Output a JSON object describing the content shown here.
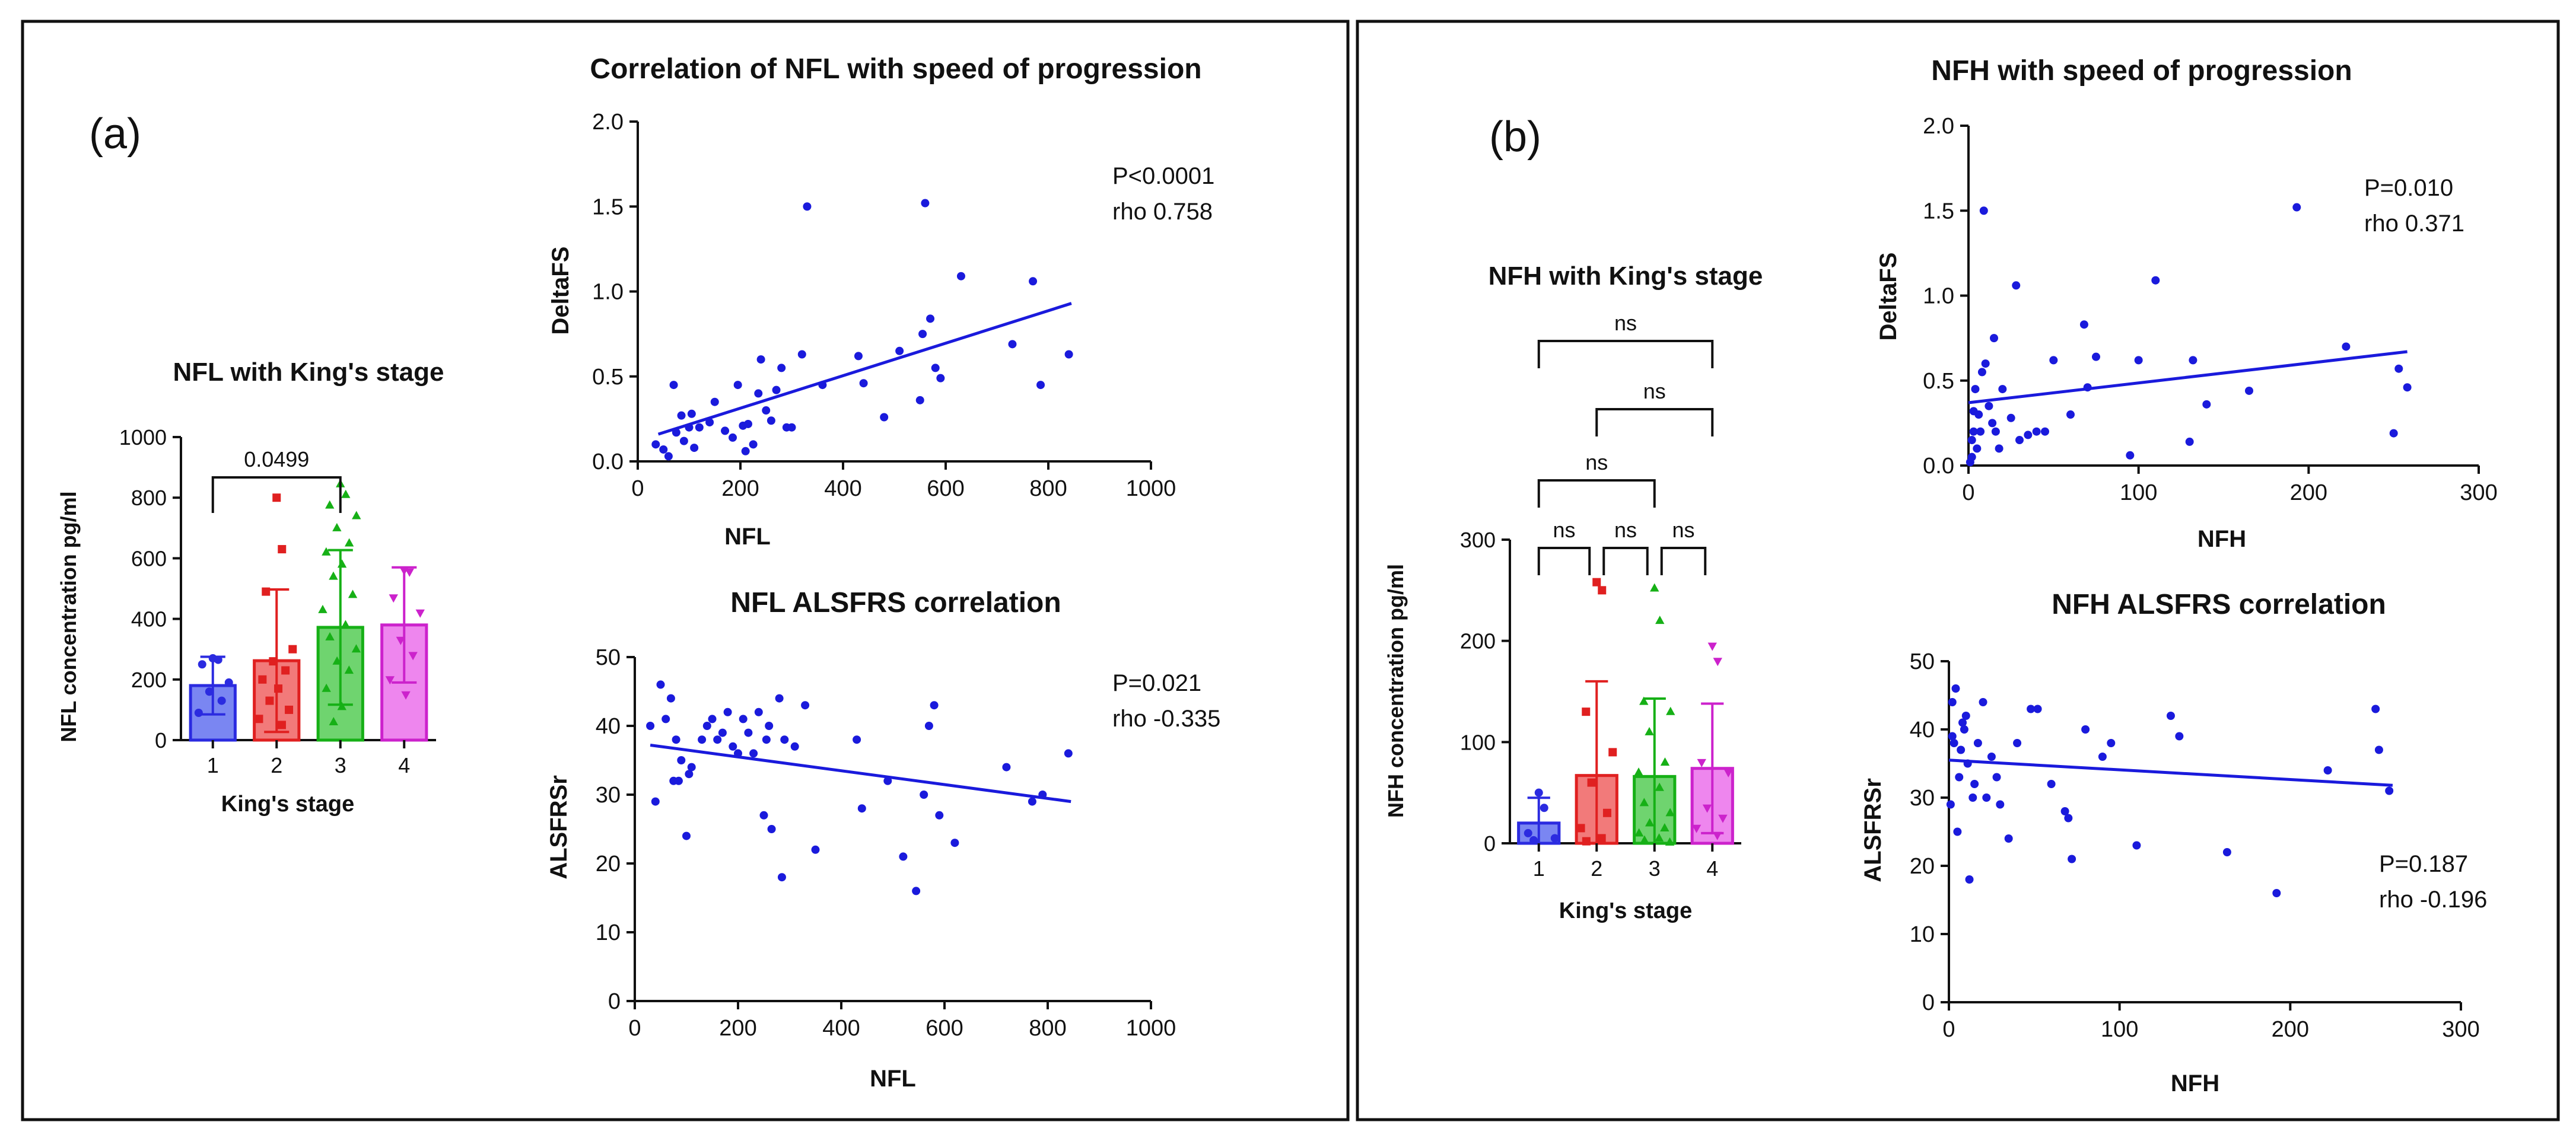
{
  "panels": [
    {
      "label": "(a)"
    },
    {
      "label": "(b)"
    }
  ],
  "colors": {
    "scatter": "#1a1adc",
    "stage_fill": [
      "#7a86f2",
      "#f27a7a",
      "#6fd46f",
      "#ee86ee"
    ],
    "stage_stroke": [
      "#2b2be0",
      "#e02020",
      "#16b016",
      "#cc22cc"
    ]
  },
  "chart_data": [
    {
      "id": "nfl_kings",
      "type": "bar",
      "title": "NFL with King's stage",
      "xlabel": "King's stage",
      "ylabel": "NFL concentration pg/ml",
      "categories": [
        "1",
        "2",
        "3",
        "4"
      ],
      "values": [
        180,
        262,
        372,
        380
      ],
      "error": [
        95,
        235,
        255,
        190
      ],
      "ylim": [
        0,
        1000
      ],
      "yticks": [
        "0",
        "200",
        "400",
        "600",
        "800",
        "1000"
      ],
      "points": [
        [
          270,
          265,
          250,
          190,
          160,
          130,
          90
        ],
        [
          800,
          630,
          490,
          300,
          260,
          230,
          200,
          170,
          130,
          100,
          70,
          50
        ],
        [
          845,
          810,
          775,
          740,
          700,
          650,
          620,
          580,
          540,
          480,
          430,
          380,
          340,
          300,
          260,
          230,
          170,
          110,
          60
        ],
        [
          560,
          555,
          470,
          420,
          330,
          280,
          200,
          150
        ]
      ],
      "comparisons": [
        {
          "from": 0,
          "to": 2,
          "label": "0.0499"
        }
      ]
    },
    {
      "id": "nfl_deltafs",
      "type": "scatter",
      "title": "Correlation of NFL with speed of progression",
      "xlabel": "NFL",
      "ylabel": "DeltaFS",
      "xlim": [
        0,
        1000
      ],
      "ylim": [
        0,
        2
      ],
      "xticks": [
        "0",
        "200",
        "400",
        "600",
        "800",
        "1000"
      ],
      "yticks": [
        "0.0",
        "0.5",
        "1.0",
        "1.5",
        "2.0"
      ],
      "annotation": [
        "P<0.0001",
        "rho 0.758"
      ],
      "fit": [
        [
          40,
          0.16
        ],
        [
          845,
          0.93
        ]
      ],
      "x": [
        35,
        50,
        60,
        70,
        75,
        85,
        90,
        100,
        105,
        110,
        120,
        140,
        150,
        170,
        185,
        195,
        205,
        210,
        215,
        225,
        235,
        240,
        250,
        260,
        270,
        280,
        290,
        300,
        320,
        330,
        360,
        430,
        440,
        480,
        510,
        550,
        555,
        560,
        570,
        580,
        590,
        630,
        730,
        770,
        785,
        840
      ],
      "y": [
        0.1,
        0.07,
        0.03,
        0.45,
        0.17,
        0.27,
        0.12,
        0.2,
        0.28,
        0.08,
        0.2,
        0.23,
        0.35,
        0.18,
        0.14,
        0.45,
        0.21,
        0.06,
        0.22,
        0.1,
        0.4,
        0.6,
        0.3,
        0.24,
        0.42,
        0.55,
        0.2,
        0.2,
        0.63,
        1.5,
        0.45,
        0.62,
        0.46,
        0.26,
        0.65,
        0.36,
        0.75,
        1.52,
        0.84,
        0.55,
        0.49,
        1.09,
        0.69,
        1.06,
        0.45,
        0.63
      ]
    },
    {
      "id": "nfl_alsfrs",
      "type": "scatter",
      "title": "NFL ALSFRS correlation",
      "xlabel": "NFL",
      "ylabel": "ALSFRSr",
      "xlim": [
        0,
        1000
      ],
      "ylim": [
        0,
        50
      ],
      "xticks": [
        "0",
        "200",
        "400",
        "600",
        "800",
        "1000"
      ],
      "yticks": [
        "0",
        "10",
        "20",
        "30",
        "40",
        "50"
      ],
      "annotation": [
        "P=0.021",
        "rho -0.335"
      ],
      "fit": [
        [
          30,
          37.2
        ],
        [
          845,
          29
        ]
      ],
      "x": [
        30,
        40,
        50,
        60,
        70,
        75,
        80,
        85,
        90,
        100,
        105,
        110,
        130,
        140,
        150,
        160,
        170,
        180,
        190,
        200,
        210,
        220,
        230,
        240,
        250,
        255,
        260,
        265,
        280,
        285,
        290,
        310,
        330,
        350,
        430,
        440,
        490,
        520,
        545,
        560,
        570,
        580,
        590,
        620,
        720,
        770,
        790,
        840
      ],
      "y": [
        40,
        29,
        46,
        41,
        44,
        32,
        38,
        32,
        35,
        24,
        33,
        34,
        38,
        40,
        41,
        38,
        39,
        42,
        37,
        36,
        41,
        39,
        36,
        42,
        27,
        38,
        40,
        25,
        44,
        18,
        38,
        37,
        43,
        22,
        38,
        28,
        32,
        21,
        16,
        30,
        40,
        43,
        27,
        23,
        34,
        29,
        30,
        36
      ]
    },
    {
      "id": "nfh_kings",
      "type": "bar",
      "title": "NFH with King's stage",
      "xlabel": "King's stage",
      "ylabel": "NFH concentration pg/ml",
      "categories": [
        "1",
        "2",
        "3",
        "4"
      ],
      "values": [
        20,
        67,
        66,
        74
      ],
      "error": [
        25,
        93,
        77,
        64
      ],
      "ylim": [
        0,
        300
      ],
      "yticks": [
        "0",
        "100",
        "200",
        "300"
      ],
      "points": [
        [
          50,
          35,
          10,
          5,
          3
        ],
        [
          258,
          250,
          130,
          90,
          60,
          30,
          15,
          5,
          2
        ],
        [
          252,
          220,
          140,
          130,
          110,
          80,
          70,
          55,
          40,
          30,
          20,
          15,
          10,
          5,
          3,
          1
        ],
        [
          195,
          180,
          80,
          70,
          35,
          25,
          15,
          8
        ]
      ],
      "comparisons": [
        {
          "from": 0,
          "to": 3,
          "label": "ns"
        },
        {
          "from": 1,
          "to": 3,
          "label": "ns"
        },
        {
          "from": 0,
          "to": 2,
          "label": "ns"
        },
        {
          "from": 0,
          "to": 1,
          "label": "ns"
        },
        {
          "from": 1,
          "to": 2,
          "label": "ns"
        },
        {
          "from": 2,
          "to": 3,
          "label": "ns"
        }
      ]
    },
    {
      "id": "nfh_deltafs",
      "type": "scatter",
      "title": "NFH with speed of progression",
      "xlabel": "NFH",
      "ylabel": "DeltaFS",
      "xlim": [
        0,
        300
      ],
      "ylim": [
        0,
        2
      ],
      "xticks": [
        "0",
        "100",
        "200",
        "300"
      ],
      "yticks": [
        "0.0",
        "0.5",
        "1.0",
        "1.5",
        "2.0"
      ],
      "annotation": [
        "P=0.010",
        "rho 0.371"
      ],
      "fit": [
        [
          0,
          0.37
        ],
        [
          258,
          0.67
        ]
      ],
      "x": [
        1,
        2,
        2,
        3,
        3,
        4,
        5,
        6,
        7,
        8,
        9,
        10,
        12,
        14,
        15,
        16,
        18,
        20,
        25,
        28,
        30,
        35,
        40,
        45,
        50,
        60,
        68,
        70,
        75,
        95,
        100,
        110,
        130,
        132,
        140,
        165,
        193,
        222,
        250,
        253,
        258
      ],
      "y": [
        0.02,
        0.05,
        0.15,
        0.2,
        0.32,
        0.45,
        0.1,
        0.3,
        0.2,
        0.55,
        1.5,
        0.6,
        0.35,
        0.25,
        0.75,
        0.2,
        0.1,
        0.45,
        0.28,
        1.06,
        0.15,
        0.18,
        0.2,
        0.2,
        0.62,
        0.3,
        0.83,
        0.46,
        0.64,
        0.06,
        0.62,
        1.09,
        0.14,
        0.62,
        0.36,
        0.44,
        1.52,
        0.7,
        0.19,
        0.57,
        0.46
      ]
    },
    {
      "id": "nfh_alsfrs",
      "type": "scatter",
      "title": "NFH ALSFRS correlation",
      "xlabel": "NFH",
      "ylabel": "ALSFRSr",
      "xlim": [
        0,
        300
      ],
      "ylim": [
        0,
        50
      ],
      "xticks": [
        "0",
        "100",
        "200",
        "300"
      ],
      "yticks": [
        "0",
        "10",
        "20",
        "30",
        "40",
        "50"
      ],
      "annotation": [
        "P=0.187",
        "rho -0.196"
      ],
      "fit": [
        [
          0,
          35.5
        ],
        [
          260,
          31.8
        ]
      ],
      "x": [
        1,
        2,
        2,
        3,
        4,
        5,
        6,
        7,
        8,
        9,
        10,
        11,
        12,
        14,
        15,
        17,
        20,
        22,
        25,
        28,
        30,
        35,
        40,
        48,
        52,
        60,
        68,
        70,
        72,
        80,
        90,
        95,
        110,
        130,
        135,
        163,
        192,
        222,
        250,
        252,
        258
      ],
      "y": [
        29,
        39,
        44,
        38,
        46,
        25,
        33,
        37,
        41,
        40,
        42,
        35,
        18,
        30,
        32,
        38,
        44,
        30,
        36,
        33,
        29,
        24,
        38,
        43,
        43,
        32,
        28,
        27,
        21,
        40,
        36,
        38,
        23,
        42,
        39,
        22,
        16,
        34,
        43,
        37,
        31
      ]
    }
  ]
}
